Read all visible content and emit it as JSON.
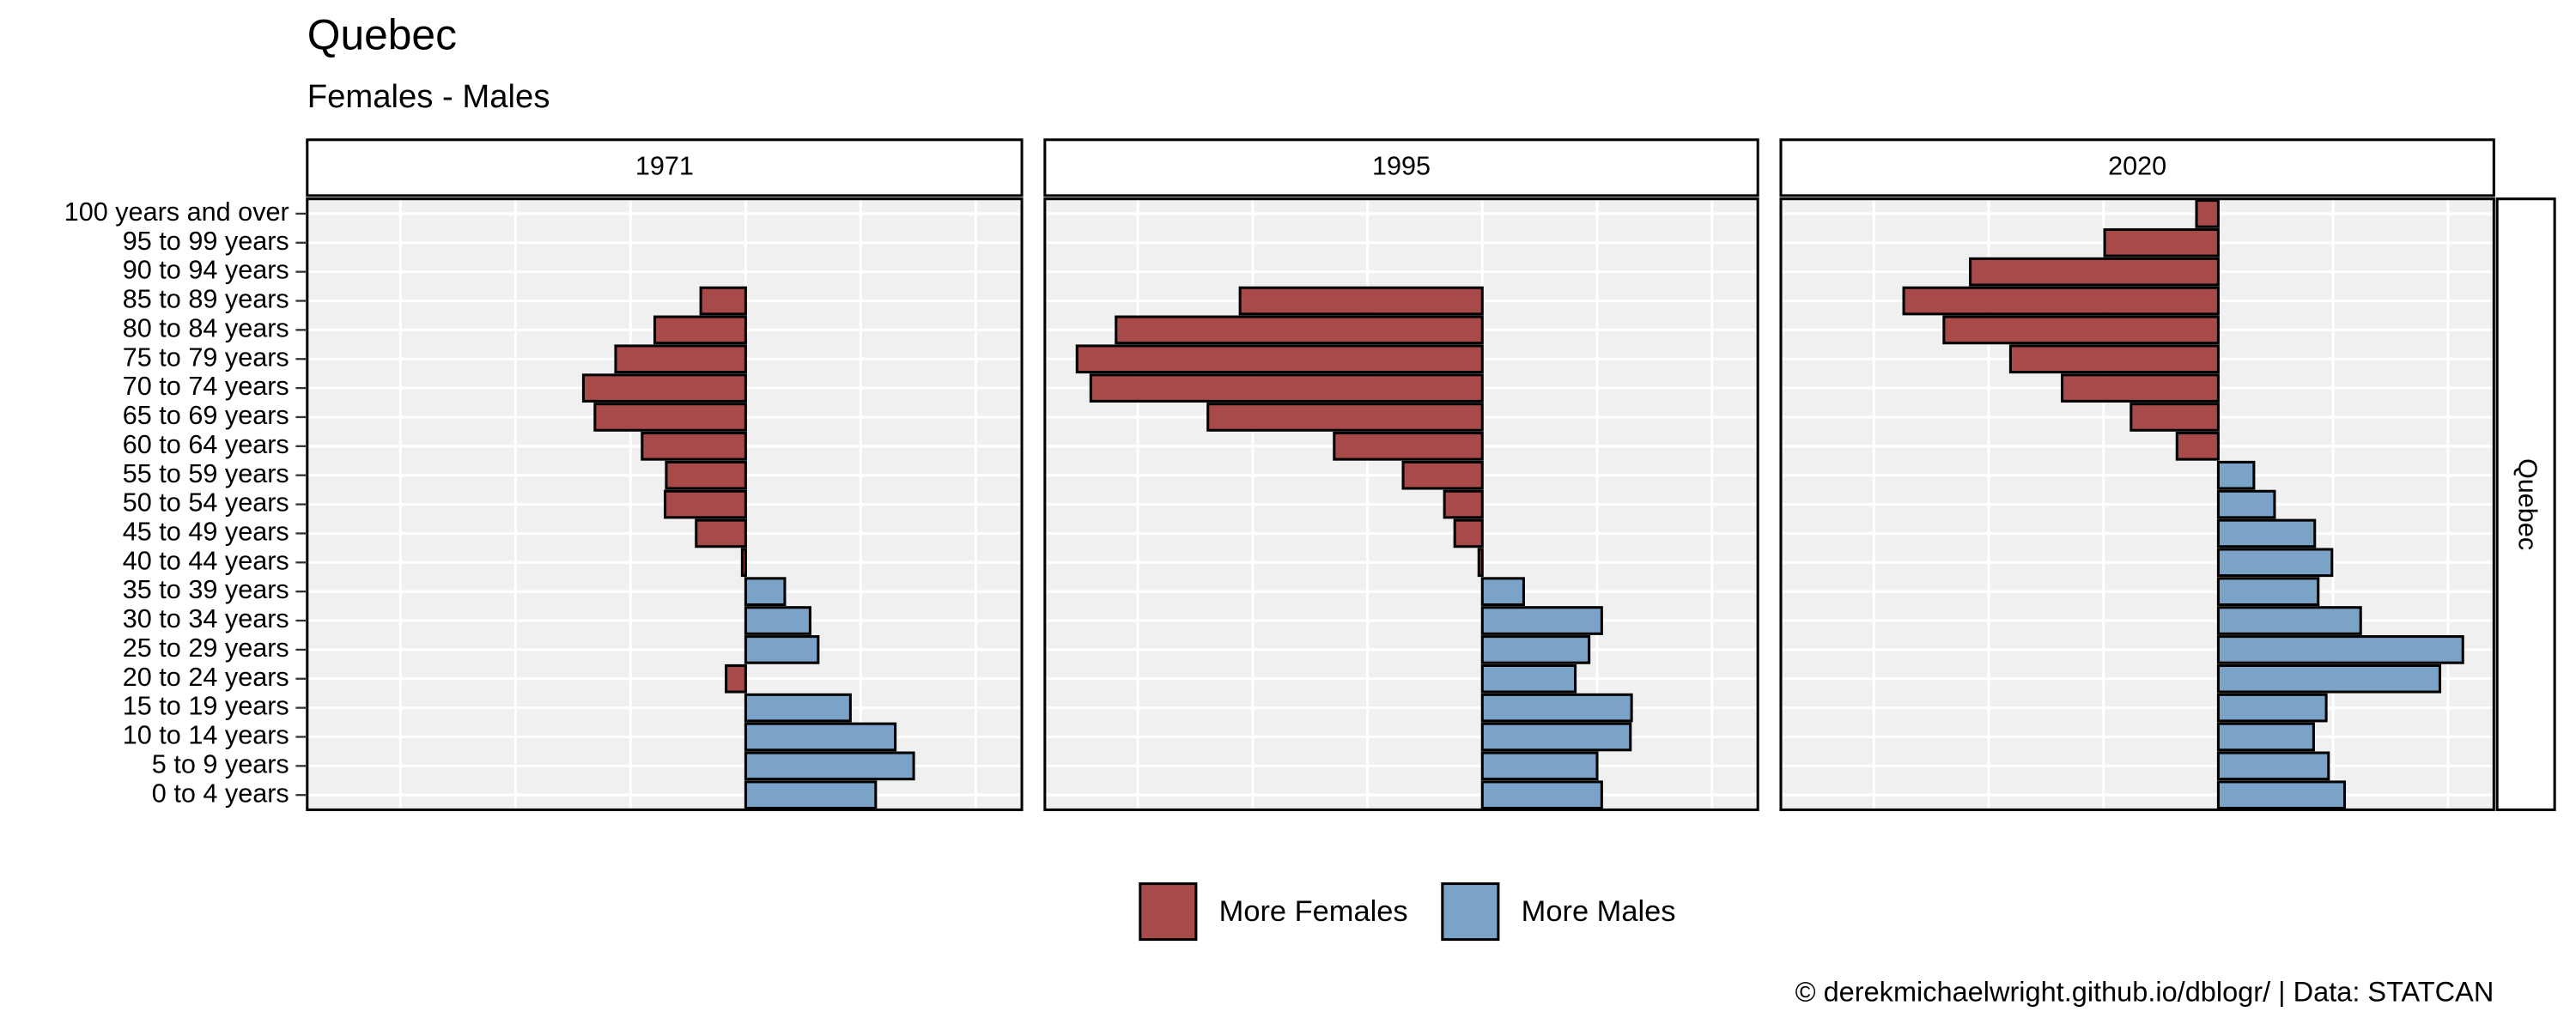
{
  "chart_data": {
    "type": "bar",
    "title": "Quebec",
    "subtitle": "Females - Males",
    "caption": "© derekmichaelwright.github.io/dblogr/ | Data: STATCAN",
    "strip_label": "Quebec",
    "categories": [
      "0 to 4 years",
      "5 to 9 years",
      "10 to 14 years",
      "15 to 19 years",
      "20 to 24 years",
      "25 to 29 years",
      "30 to 34 years",
      "35 to 39 years",
      "40 to 44 years",
      "45 to 49 years",
      "50 to 54 years",
      "55 to 59 years",
      "60 to 64 years",
      "65 to 69 years",
      "70 to 74 years",
      "75 to 79 years",
      "80 to 84 years",
      "85 to 89 years",
      "90 to 94 years",
      "95 to 99 years",
      "100 years and over"
    ],
    "panels": [
      {
        "label": "1971",
        "values": [
          1.13,
          1.46,
          1.3,
          0.91,
          -0.17,
          0.63,
          0.56,
          0.34,
          -0.03,
          -0.43,
          -0.7,
          -0.69,
          -0.9,
          -1.31,
          -1.41,
          -1.13,
          -0.79,
          -0.39,
          0,
          0,
          0
        ]
      },
      {
        "label": "1995",
        "values": [
          1.04,
          1.0,
          1.29,
          1.3,
          0.81,
          0.93,
          1.04,
          0.36,
          -0.03,
          -0.24,
          -0.33,
          -0.69,
          -1.29,
          -2.39,
          -3.41,
          -3.53,
          -3.19,
          -2.11,
          0,
          0,
          0
        ]
      },
      {
        "label": "2020",
        "values": [
          1.1,
          0.96,
          0.83,
          0.94,
          1.93,
          2.13,
          1.24,
          0.87,
          0.99,
          0.84,
          0.49,
          0.31,
          -0.36,
          -0.76,
          -1.36,
          -1.81,
          -2.39,
          -2.74,
          -2.16,
          -0.99,
          -0.19
        ]
      }
    ],
    "legend": [
      {
        "name": "More Females",
        "color": "#a84a4a"
      },
      {
        "name": "More Males",
        "color": "#7aa3c7"
      }
    ],
    "xlim": [
      -3.81,
      2.4
    ],
    "xticks": [
      -3,
      -2,
      -1,
      0,
      1,
      2
    ],
    "grid": true
  }
}
